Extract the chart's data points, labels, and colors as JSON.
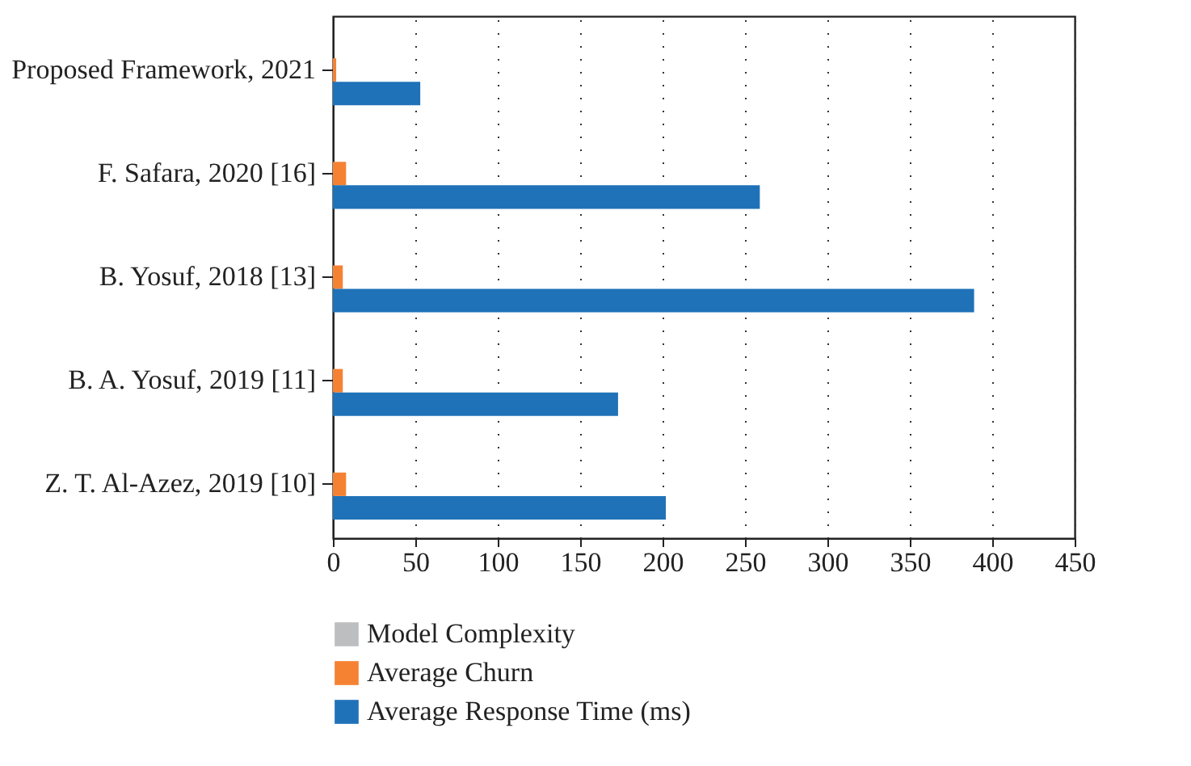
{
  "chart_data": {
    "type": "bar",
    "orientation": "horizontal",
    "categories": [
      "Proposed Framework, 2021",
      "F. Safara, 2020 [16]",
      "B. Yosuf, 2018 [13]",
      "B. A. Yosuf, 2019 [11]",
      "Z. T. Al-Azez, 2019 [10]"
    ],
    "series": [
      {
        "name": "Model Complexity",
        "color": "#bcbec0",
        "values": [
          0,
          0,
          0,
          0,
          0
        ]
      },
      {
        "name": "Average Churn",
        "color": "#f58233",
        "values": [
          2,
          8,
          6,
          6,
          8
        ]
      },
      {
        "name": "Average Response Time (ms)",
        "color": "#1f72b8",
        "values": [
          53,
          259,
          389,
          173,
          202
        ]
      }
    ],
    "xlim": [
      0,
      450
    ],
    "xticks": [
      0,
      50,
      100,
      150,
      200,
      250,
      300,
      350,
      400,
      450
    ],
    "grid": "x",
    "legend": "bottom"
  }
}
